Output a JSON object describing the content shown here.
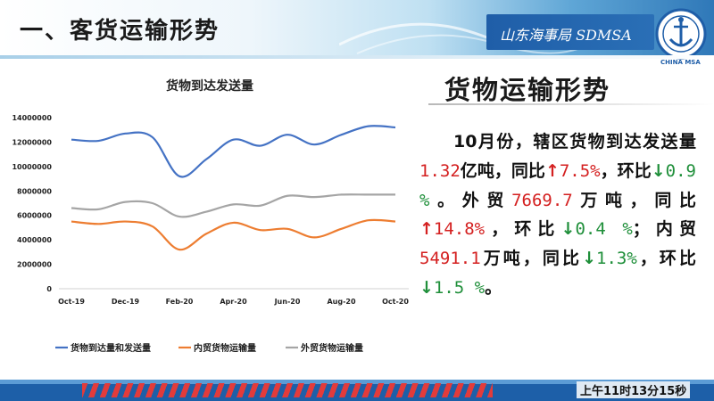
{
  "header": {
    "title": "一、客货运输形势",
    "brand": "山东海事局 SDMSA",
    "logo_text": "CHINA MSA"
  },
  "chart_data": {
    "type": "line",
    "title": "货物到达发送量",
    "categories": [
      "Oct-19",
      "Nov-19",
      "Dec-19",
      "Jan-20",
      "Feb-20",
      "Mar-20",
      "Apr-20",
      "May-20",
      "Jun-20",
      "Jul-20",
      "Aug-20",
      "Sep-20",
      "Oct-20"
    ],
    "x_tick_labels": [
      "Oct-19",
      "Dec-19",
      "Feb-20",
      "Apr-20",
      "Jun-20",
      "Aug-20",
      "Oct-20"
    ],
    "y_ticks": [
      "14000000",
      "12000000",
      "10000000",
      "8000000",
      "6000000",
      "4000000",
      "2000000",
      "0"
    ],
    "ylim": [
      0,
      14000000
    ],
    "series": [
      {
        "name": "货物到达量和发送量",
        "color": "#4472c4",
        "values": [
          12200000,
          12100000,
          12700000,
          12400000,
          9200000,
          10600000,
          12200000,
          11700000,
          12600000,
          11800000,
          12600000,
          13300000,
          13200000
        ]
      },
      {
        "name": "内贸货物运输量",
        "color": "#ed7d31",
        "values": [
          5500000,
          5300000,
          5500000,
          5100000,
          3200000,
          4500000,
          5400000,
          4800000,
          4900000,
          4200000,
          4900000,
          5600000,
          5500000
        ]
      },
      {
        "name": "外贸货物运输量",
        "color": "#a5a5a5",
        "values": [
          6600000,
          6500000,
          7100000,
          7000000,
          5900000,
          6300000,
          6900000,
          6800000,
          7600000,
          7500000,
          7700000,
          7700000,
          7700000
        ]
      }
    ],
    "legend_position": "bottom"
  },
  "panel": {
    "title": "货物运输形势",
    "p_intro": "10月份，辖区货物到达发送量",
    "v_total": "1.32",
    "u_total": "亿吨，同比",
    "arrow_up": "↑",
    "arrow_down": "↓",
    "v_total_yoy": "7.5%",
    "t_total_mom": "，环比",
    "v_total_mom": "0.9 %",
    "t_foreign": "。外贸",
    "v_foreign": "7669.7",
    "u_foreign": "万吨，同比",
    "v_foreign_yoy": "14.8%",
    "t_foreign_mom": "，环比",
    "v_foreign_mom": "0.4 %",
    "t_domestic": "；内贸",
    "v_domestic": "5491.1",
    "u_domestic": "万吨，同比",
    "v_domestic_yoy": "1.3%",
    "t_domestic_mom": "，环比",
    "v_domestic_mom": "1.5 %",
    "t_end": "。"
  },
  "footer": {
    "clock": "上午11时13分15秒"
  }
}
